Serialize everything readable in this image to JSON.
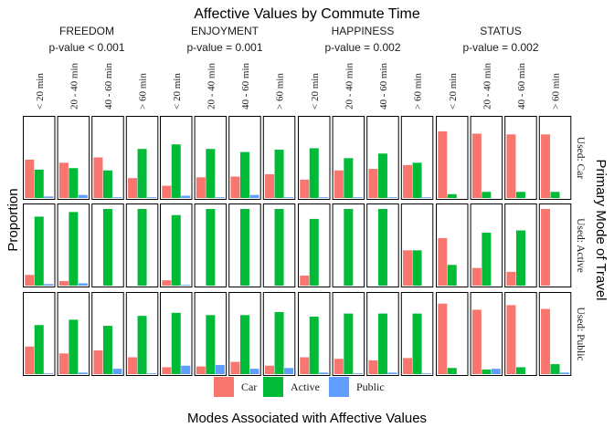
{
  "chart_data": {
    "type": "bar",
    "title": "Affective Values by Commute Time",
    "xlabel": "Modes Associated with Affective Values",
    "ylabel": "Proportion",
    "right_label": "Primary Mode of Travel",
    "grid": false,
    "legend_position": "bottom",
    "ylim": [
      0,
      1
    ],
    "legend": [
      {
        "name": "Car",
        "color": "#F8766D"
      },
      {
        "name": "Active",
        "color": "#00BA38"
      },
      {
        "name": "Public",
        "color": "#619CFF"
      }
    ],
    "commute_times": [
      "< 20 min",
      "20 - 40 min",
      "40 - 60 min",
      "> 60 min"
    ],
    "values_order": [
      "Car",
      "Active",
      "Public"
    ],
    "groups": [
      {
        "name": "FREEDOM",
        "pvalue": "p-value  < 0.001"
      },
      {
        "name": "ENJOYMENT",
        "pvalue": "p-value = 0.001"
      },
      {
        "name": "HAPPINESS",
        "pvalue": "p-value = 0.002"
      },
      {
        "name": "STATUS",
        "pvalue": "p-value = 0.002"
      }
    ],
    "rows": [
      {
        "name": "Used: Car",
        "cells": [
          [
            [
              0.5,
              0.37,
              0.02
            ],
            [
              0.46,
              0.39,
              0.04
            ],
            [
              0.53,
              0.36,
              0.01
            ],
            [
              0.26,
              0.64,
              0.01
            ]
          ],
          [
            [
              0.16,
              0.7,
              0.03
            ],
            [
              0.27,
              0.64,
              0.01
            ],
            [
              0.28,
              0.6,
              0.04
            ],
            [
              0.31,
              0.63,
              0.01
            ]
          ],
          [
            [
              0.24,
              0.65,
              0.01
            ],
            [
              0.36,
              0.52,
              0.01
            ],
            [
              0.38,
              0.58,
              0.01
            ],
            [
              0.43,
              0.46,
              0.01
            ]
          ],
          [
            [
              0.87,
              0.05,
              0.0
            ],
            [
              0.84,
              0.08,
              0.0
            ],
            [
              0.83,
              0.08,
              0.0
            ],
            [
              0.83,
              0.08,
              0.0
            ]
          ]
        ]
      },
      {
        "name": "Used: Active",
        "cells": [
          [
            [
              0.14,
              0.9,
              0.02
            ],
            [
              0.06,
              0.96,
              0.03
            ],
            [
              0.0,
              1.0,
              0.0
            ],
            [
              0.0,
              1.0,
              0.0
            ]
          ],
          [
            [
              0.07,
              0.92,
              0.01
            ],
            [
              0.0,
              1.0,
              0.0
            ],
            [
              0.0,
              1.0,
              0.0
            ],
            [
              0.0,
              1.0,
              0.0
            ]
          ],
          [
            [
              0.13,
              0.87,
              0.0
            ],
            [
              0.0,
              1.0,
              0.0
            ],
            [
              0.0,
              1.0,
              0.0
            ],
            [
              0.46,
              0.46,
              0.0
            ]
          ],
          [
            [
              0.62,
              0.27,
              0.0
            ],
            [
              0.23,
              0.69,
              0.0
            ],
            [
              0.18,
              0.72,
              0.0
            ],
            [
              1.0,
              0.0,
              0.0
            ]
          ]
        ]
      },
      {
        "name": "Used: Public",
        "cells": [
          [
            [
              0.36,
              0.64,
              0.01
            ],
            [
              0.27,
              0.71,
              0.02
            ],
            [
              0.31,
              0.63,
              0.07
            ],
            [
              0.22,
              0.76,
              0.01
            ]
          ],
          [
            [
              0.09,
              0.8,
              0.11
            ],
            [
              0.1,
              0.77,
              0.12
            ],
            [
              0.16,
              0.77,
              0.07
            ],
            [
              0.11,
              0.81,
              0.08
            ]
          ],
          [
            [
              0.22,
              0.75,
              0.02
            ],
            [
              0.2,
              0.79,
              0.01
            ],
            [
              0.18,
              0.79,
              0.02
            ],
            [
              0.21,
              0.79,
              0.01
            ]
          ],
          [
            [
              0.92,
              0.08,
              0.0
            ],
            [
              0.84,
              0.06,
              0.07
            ],
            [
              0.9,
              0.09,
              0.0
            ],
            [
              0.85,
              0.13,
              0.02
            ]
          ]
        ]
      }
    ]
  }
}
